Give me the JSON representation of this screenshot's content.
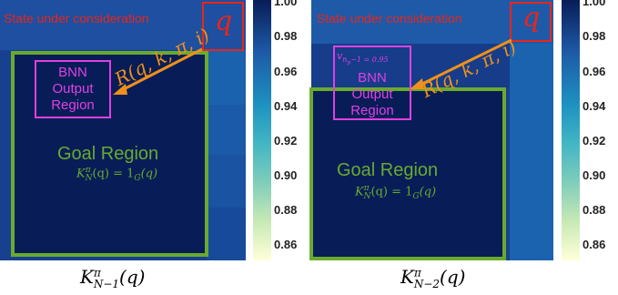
{
  "left_panel": {
    "state_label": "State under consideration",
    "q_label": "q",
    "bnn_label_lines": [
      "BNN",
      "Output",
      "Region"
    ],
    "goal_label": "Goal Region",
    "goal_formula": "K",
    "goal_formula_sup": "π",
    "goal_formula_sub": "N",
    "goal_formula_rest": "(q) = 1",
    "goal_formula_sub2": "G",
    "goal_formula_end": "(q)",
    "r_label": "R(q, k, π, i)",
    "caption_main": "K",
    "caption_sup": "π",
    "caption_sub": "N−1",
    "caption_rest": "(q)"
  },
  "right_panel": {
    "state_label": "State under consideration",
    "q_label": "q",
    "v_label_main": "v",
    "v_label_sub": "n",
    "v_label_subsub": "p",
    "v_label_rest": "−1 = 0.95",
    "bnn_label_lines": [
      "BNN",
      "Output",
      "Region"
    ],
    "goal_label": "Goal Region",
    "goal_formula": "K",
    "goal_formula_sup": "π",
    "goal_formula_sub": "N",
    "goal_formula_rest": "(q) = 1",
    "goal_formula_sub2": "G",
    "goal_formula_end": "(q)",
    "r_label": "R(q, k, π, i)",
    "caption_main": "K",
    "caption_sup": "π",
    "caption_sub": "N−2",
    "caption_rest": "(q)"
  },
  "colorbar": {
    "ticks": [
      "1.00",
      "0.98",
      "0.96",
      "0.94",
      "0.92",
      "0.90",
      "0.88",
      "0.86"
    ],
    "colors": {
      "top": "#081d58",
      "mid": "#1d91c0",
      "low": "#7fcdbb",
      "bottom": "#ffffd9"
    }
  }
}
